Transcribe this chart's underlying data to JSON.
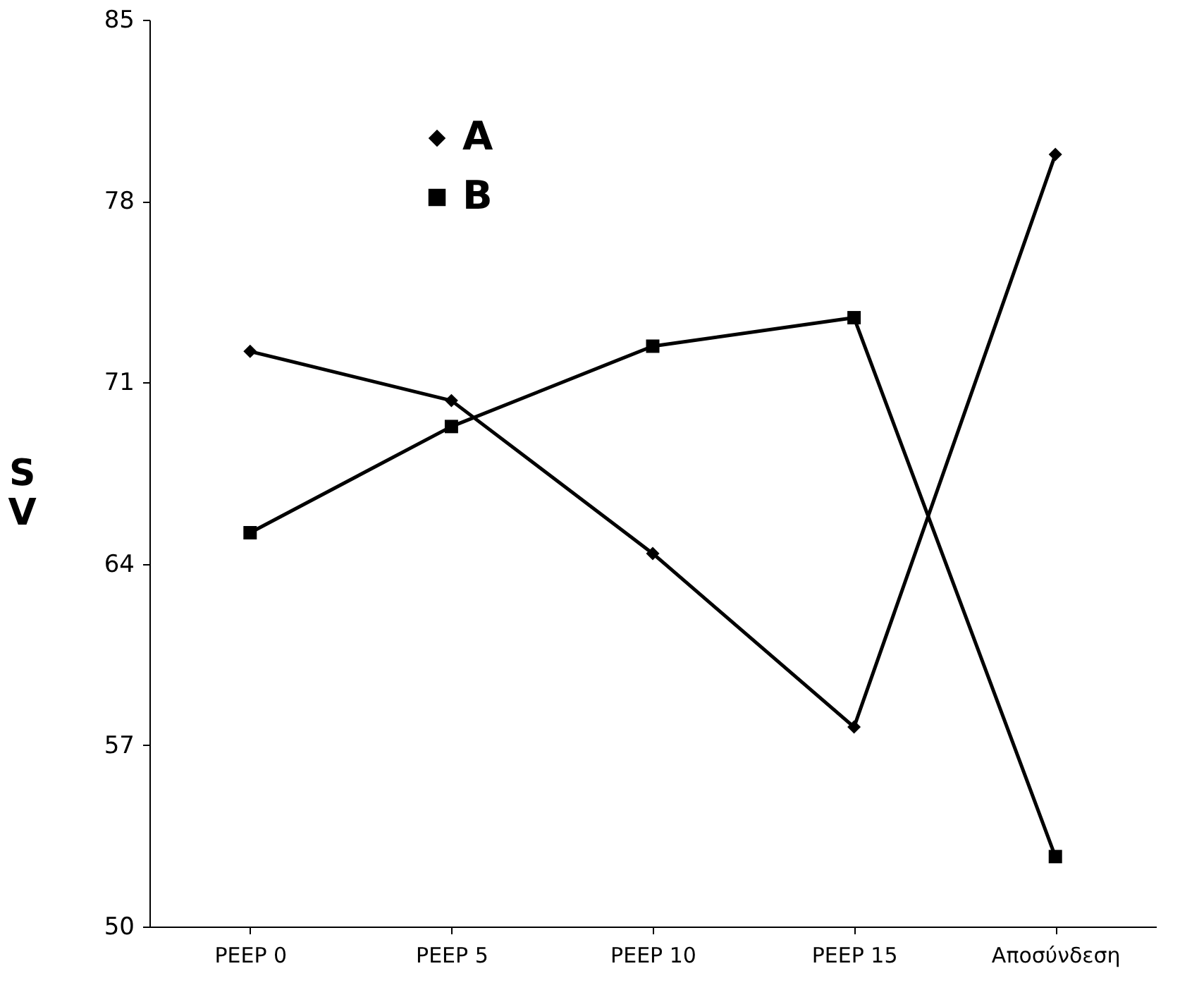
{
  "chart_data": {
    "type": "line",
    "ylabel": "S V",
    "categories": [
      "PEEP 0",
      "PEEP 5",
      "PEEP 10",
      "PEEP 15",
      "Αποσύνδεση"
    ],
    "series": [
      {
        "name": "A",
        "color": "#000000",
        "marker": "diamond",
        "values": [
          72.2,
          70.3,
          64.4,
          57.7,
          79.8
        ]
      },
      {
        "name": "B",
        "color": "#000000",
        "marker": "square",
        "values": [
          65.2,
          69.3,
          72.4,
          73.5,
          52.7
        ]
      }
    ],
    "ylim": [
      50,
      85
    ],
    "yticks": [
      50,
      57,
      64,
      71,
      78,
      85
    ],
    "grid": false,
    "legend": "top"
  }
}
